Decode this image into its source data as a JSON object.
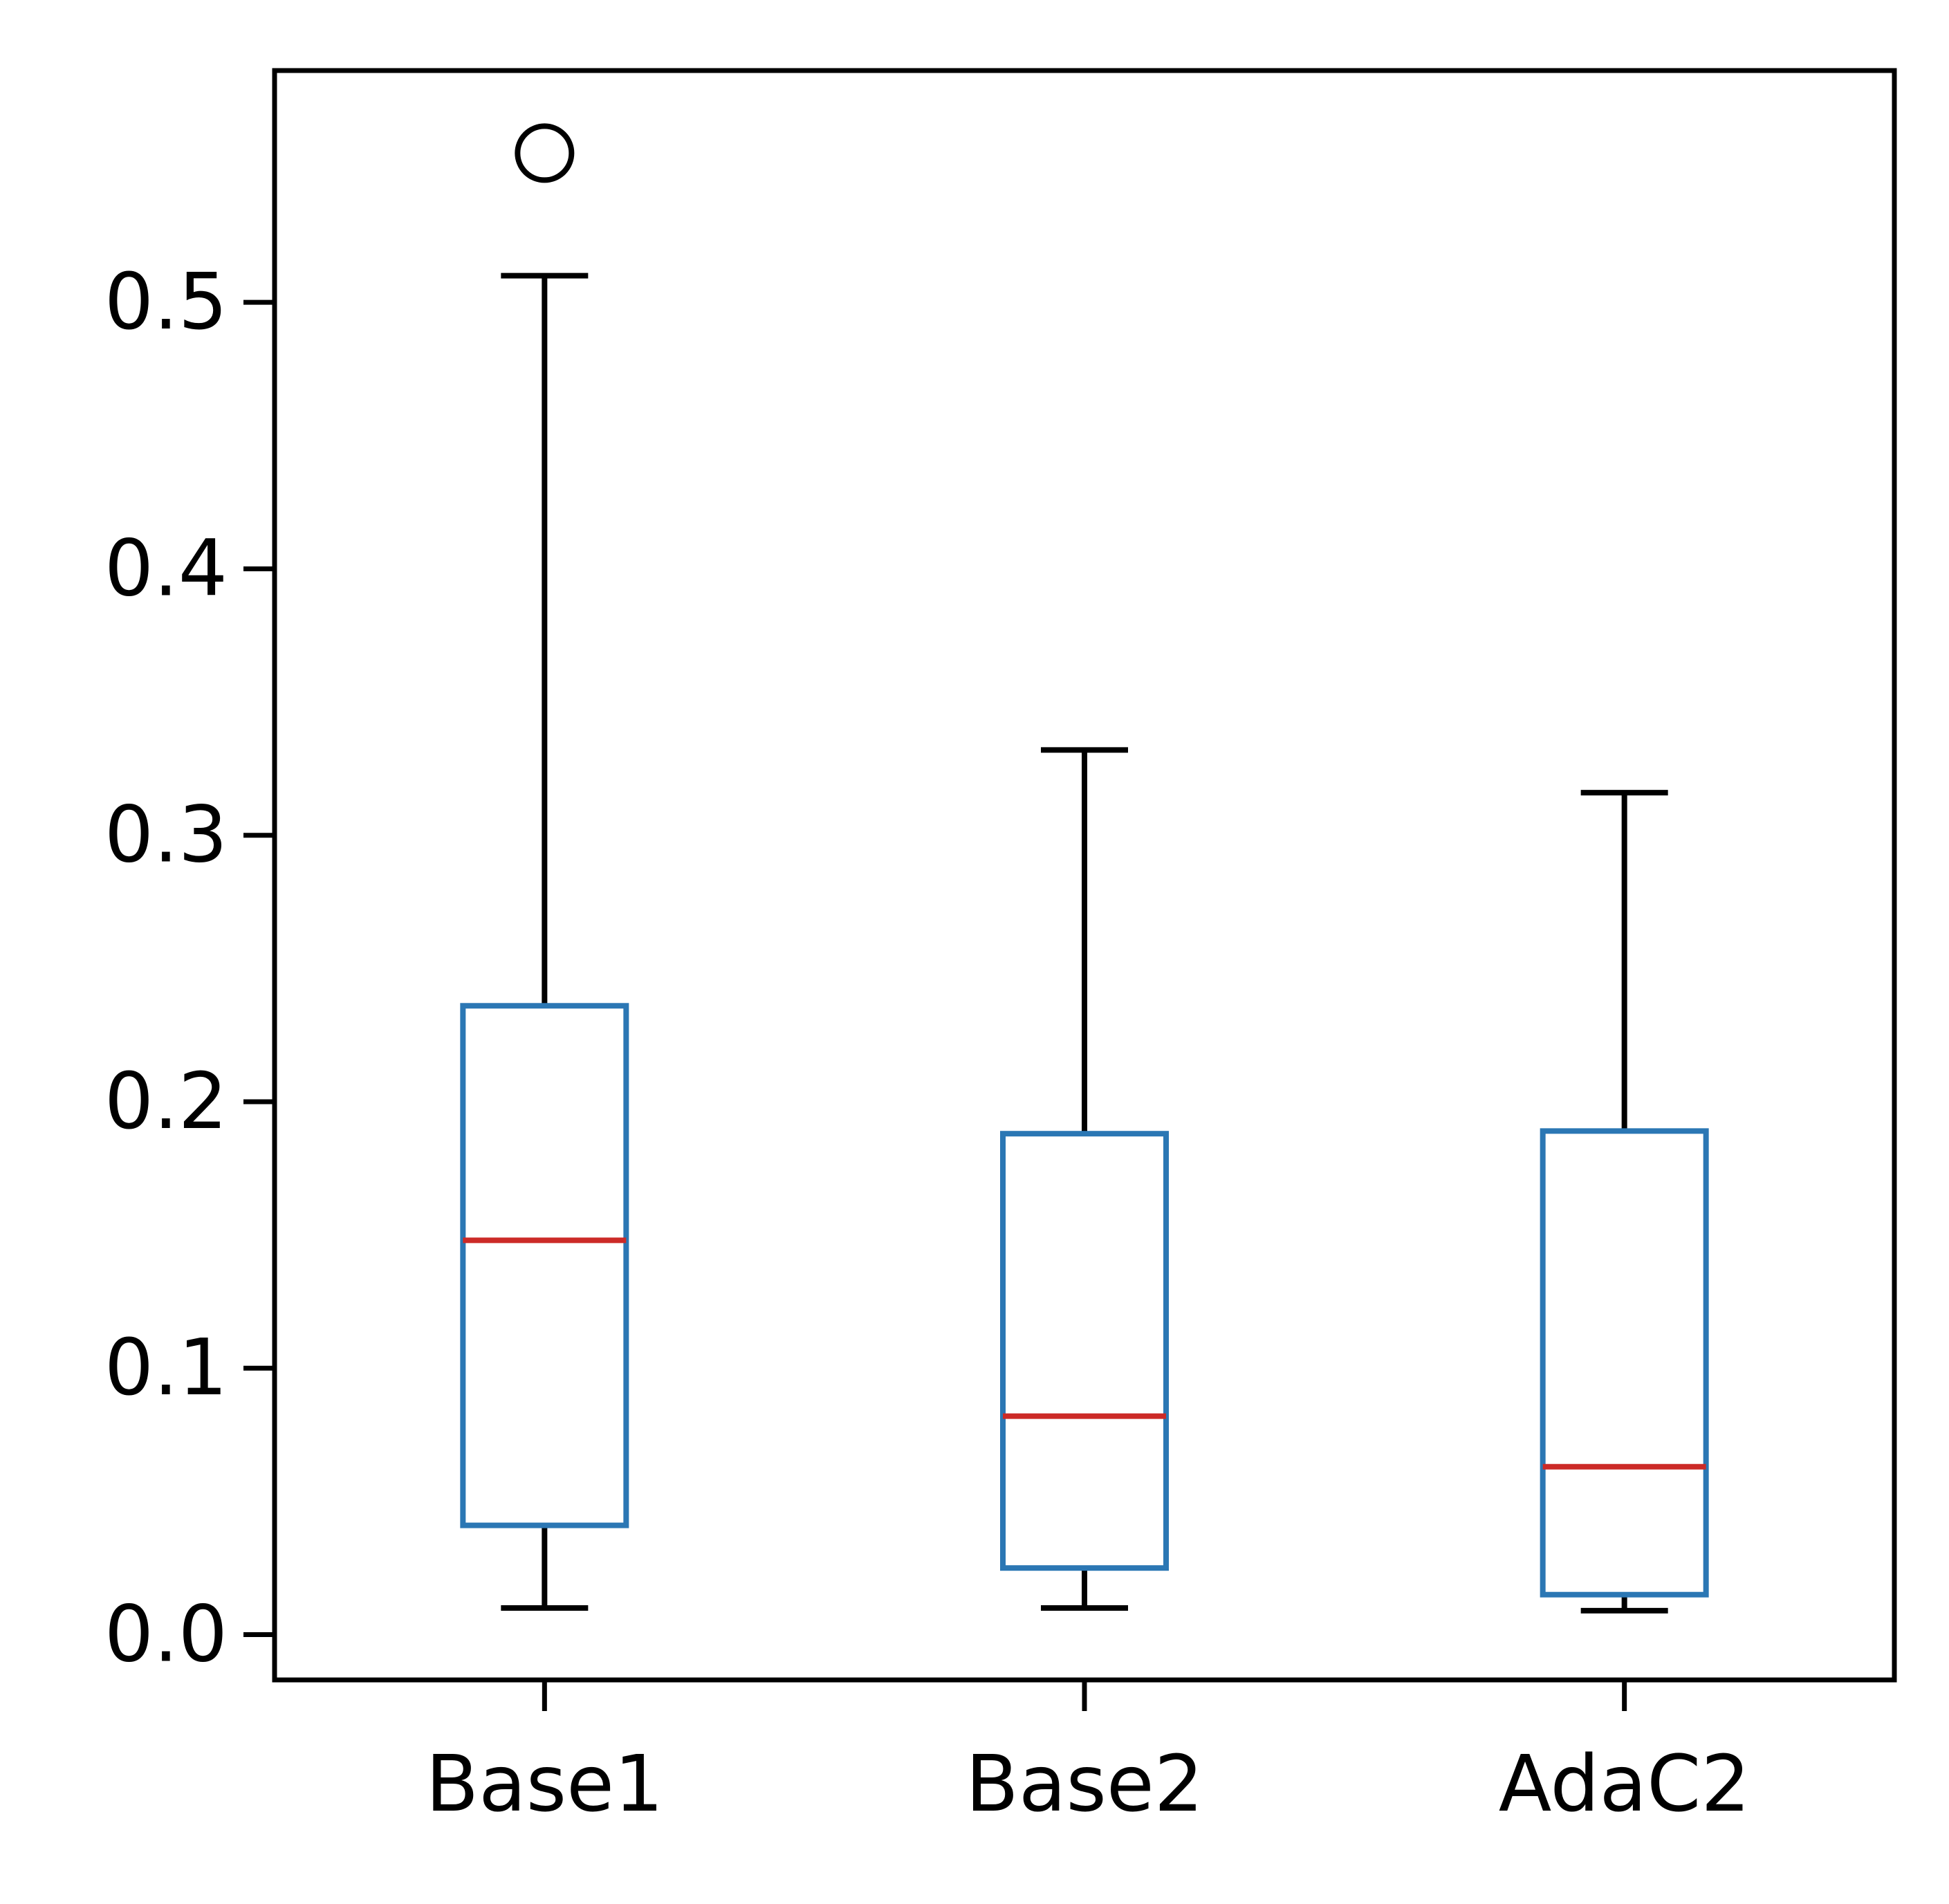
{
  "chart_data": {
    "type": "box",
    "categories": [
      "Base1",
      "Base2",
      "AdaC2"
    ],
    "boxes": [
      {
        "name": "Base1",
        "whislo": 0.01,
        "q1": 0.041,
        "med": 0.148,
        "q3": 0.236,
        "whishi": 0.51,
        "fliers": [
          0.556
        ]
      },
      {
        "name": "Base2",
        "whislo": 0.01,
        "q1": 0.025,
        "med": 0.082,
        "q3": 0.188,
        "whishi": 0.332,
        "fliers": []
      },
      {
        "name": "AdaC2",
        "whislo": 0.009,
        "q1": 0.015,
        "med": 0.063,
        "q3": 0.189,
        "whishi": 0.316,
        "fliers": []
      }
    ],
    "yticks": [
      "0.0",
      "0.1",
      "0.2",
      "0.3",
      "0.4",
      "0.5"
    ],
    "ylim": [
      -0.017,
      0.587
    ],
    "xlabel": "",
    "ylabel": "",
    "grid": false,
    "colors": {
      "box": "#2b77b4",
      "median": "#cc2a27",
      "whisker": "#000000",
      "frame": "#000000"
    }
  }
}
